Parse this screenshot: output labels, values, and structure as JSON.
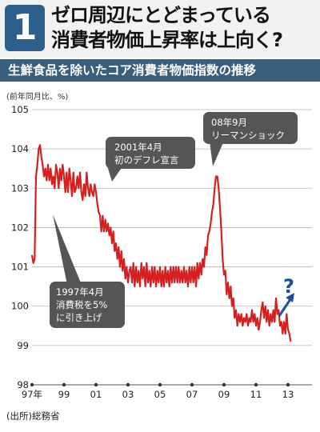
{
  "badge_number": "1",
  "title_lines": [
    "ゼロ周辺にとどまっている",
    "消費者物価上昇率は上向く?"
  ],
  "subtitle": "生鮮食品を除いたコア消費者物価指数の推移",
  "colors": {
    "line": "#d42020",
    "callout": "#555555",
    "arrow": "#1e4f9a",
    "header_blue": "#3a5e7e"
  },
  "chart_data": {
    "type": "line",
    "ylabel": "(前年同月比、%)",
    "ylim": [
      98,
      105
    ],
    "yticks": [
      98,
      99,
      100,
      101,
      102,
      103,
      104,
      105
    ],
    "xticks": [
      "97年",
      "99",
      "01",
      "03",
      "05",
      "07",
      "09",
      "11",
      "13"
    ],
    "x_start": 1997.0,
    "x_end": 2014.5,
    "grid": "horizontal",
    "source": "(出所)総務省",
    "series": [
      {
        "points": [
          [
            1997.0,
            101.3
          ],
          [
            1997.083,
            101.1
          ],
          [
            1997.167,
            101.2
          ],
          [
            1997.25,
            103.3
          ],
          [
            1997.333,
            103.6
          ],
          [
            1997.417,
            104.0
          ],
          [
            1997.5,
            104.1
          ],
          [
            1997.583,
            103.8
          ],
          [
            1997.667,
            103.6
          ],
          [
            1997.75,
            103.3
          ],
          [
            1997.833,
            103.5
          ],
          [
            1997.917,
            103.2
          ],
          [
            1998.0,
            103.6
          ],
          [
            1998.083,
            103.2
          ],
          [
            1998.167,
            103.5
          ],
          [
            1998.25,
            103.1
          ],
          [
            1998.333,
            103.3
          ],
          [
            1998.417,
            103.0
          ],
          [
            1998.5,
            103.6
          ],
          [
            1998.583,
            103.4
          ],
          [
            1998.667,
            103.0
          ],
          [
            1998.75,
            103.5
          ],
          [
            1998.833,
            103.2
          ],
          [
            1998.917,
            103.6
          ],
          [
            1999.0,
            103.3
          ],
          [
            1999.083,
            102.9
          ],
          [
            1999.167,
            103.4
          ],
          [
            1999.25,
            102.9
          ],
          [
            1999.333,
            103.5
          ],
          [
            1999.417,
            103.2
          ],
          [
            1999.5,
            102.8
          ],
          [
            1999.583,
            103.4
          ],
          [
            1999.667,
            102.9
          ],
          [
            1999.75,
            103.0
          ],
          [
            1999.833,
            103.3
          ],
          [
            1999.917,
            103.0
          ],
          [
            2000.0,
            103.4
          ],
          [
            2000.083,
            102.9
          ],
          [
            2000.167,
            102.7
          ],
          [
            2000.25,
            103.1
          ],
          [
            2000.333,
            102.8
          ],
          [
            2000.417,
            103.4
          ],
          [
            2000.5,
            103.0
          ],
          [
            2000.583,
            102.8
          ],
          [
            2000.667,
            103.1
          ],
          [
            2000.75,
            102.9
          ],
          [
            2000.833,
            102.8
          ],
          [
            2000.917,
            103.1
          ],
          [
            2001.0,
            102.9
          ],
          [
            2001.083,
            102.6
          ],
          [
            2001.167,
            102.4
          ],
          [
            2001.25,
            102.3
          ],
          [
            2001.333,
            101.9
          ],
          [
            2001.417,
            102.3
          ],
          [
            2001.5,
            101.9
          ],
          [
            2001.583,
            102.2
          ],
          [
            2001.667,
            101.9
          ],
          [
            2001.75,
            102.1
          ],
          [
            2001.833,
            101.8
          ],
          [
            2001.917,
            102.0
          ],
          [
            2002.0,
            101.6
          ],
          [
            2002.083,
            101.9
          ],
          [
            2002.167,
            101.4
          ],
          [
            2002.25,
            101.6
          ],
          [
            2002.333,
            101.2
          ],
          [
            2002.417,
            101.5
          ],
          [
            2002.5,
            101.0
          ],
          [
            2002.583,
            101.4
          ],
          [
            2002.667,
            100.9
          ],
          [
            2002.75,
            101.2
          ],
          [
            2002.833,
            100.7
          ],
          [
            2002.917,
            101.0
          ],
          [
            2003.0,
            100.6
          ],
          [
            2003.083,
            100.9
          ],
          [
            2003.167,
            101.0
          ],
          [
            2003.25,
            100.6
          ],
          [
            2003.333,
            101.1
          ],
          [
            2003.417,
            100.5
          ],
          [
            2003.5,
            101.0
          ],
          [
            2003.583,
            100.6
          ],
          [
            2003.667,
            100.9
          ],
          [
            2003.75,
            100.5
          ],
          [
            2003.833,
            101.1
          ],
          [
            2003.917,
            100.7
          ],
          [
            2004.0,
            101.0
          ],
          [
            2004.083,
            100.5
          ],
          [
            2004.167,
            101.1
          ],
          [
            2004.25,
            100.6
          ],
          [
            2004.333,
            100.9
          ],
          [
            2004.417,
            100.5
          ],
          [
            2004.5,
            101.0
          ],
          [
            2004.583,
            100.6
          ],
          [
            2004.667,
            101.0
          ],
          [
            2004.75,
            100.5
          ],
          [
            2004.833,
            100.9
          ],
          [
            2004.917,
            100.6
          ],
          [
            2005.0,
            101.0
          ],
          [
            2005.083,
            100.5
          ],
          [
            2005.167,
            100.9
          ],
          [
            2005.25,
            100.5
          ],
          [
            2005.333,
            101.0
          ],
          [
            2005.417,
            100.6
          ],
          [
            2005.5,
            100.9
          ],
          [
            2005.583,
            100.5
          ],
          [
            2005.667,
            101.0
          ],
          [
            2005.75,
            100.6
          ],
          [
            2005.833,
            101.0
          ],
          [
            2005.917,
            100.6
          ],
          [
            2006.0,
            101.0
          ],
          [
            2006.083,
            100.6
          ],
          [
            2006.167,
            101.0
          ],
          [
            2006.25,
            100.6
          ],
          [
            2006.333,
            100.9
          ],
          [
            2006.417,
            100.6
          ],
          [
            2006.5,
            101.0
          ],
          [
            2006.583,
            100.6
          ],
          [
            2006.667,
            100.9
          ],
          [
            2006.75,
            100.5
          ],
          [
            2006.833,
            101.0
          ],
          [
            2006.917,
            100.6
          ],
          [
            2007.0,
            101.0
          ],
          [
            2007.083,
            100.6
          ],
          [
            2007.167,
            101.0
          ],
          [
            2007.25,
            100.5
          ],
          [
            2007.333,
            101.1
          ],
          [
            2007.417,
            100.7
          ],
          [
            2007.5,
            101.1
          ],
          [
            2007.583,
            100.8
          ],
          [
            2007.667,
            101.2
          ],
          [
            2007.75,
            101.0
          ],
          [
            2007.833,
            101.5
          ],
          [
            2007.917,
            101.3
          ],
          [
            2008.0,
            101.8
          ],
          [
            2008.083,
            101.9
          ],
          [
            2008.167,
            102.1
          ],
          [
            2008.25,
            102.4
          ],
          [
            2008.333,
            102.6
          ],
          [
            2008.417,
            103.0
          ],
          [
            2008.5,
            103.3
          ],
          [
            2008.583,
            103.3
          ],
          [
            2008.667,
            103.0
          ],
          [
            2008.75,
            102.5
          ],
          [
            2008.833,
            101.9
          ],
          [
            2008.917,
            101.2
          ],
          [
            2009.0,
            100.8
          ],
          [
            2009.083,
            100.9
          ],
          [
            2009.167,
            100.3
          ],
          [
            2009.25,
            100.6
          ],
          [
            2009.333,
            100.2
          ],
          [
            2009.417,
            100.5
          ],
          [
            2009.5,
            100.0
          ],
          [
            2009.583,
            100.2
          ],
          [
            2009.667,
            99.7
          ],
          [
            2009.75,
            99.9
          ],
          [
            2009.833,
            99.5
          ],
          [
            2009.917,
            99.8
          ],
          [
            2010.0,
            99.6
          ],
          [
            2010.083,
            99.8
          ],
          [
            2010.167,
            99.5
          ],
          [
            2010.25,
            99.7
          ],
          [
            2010.333,
            99.6
          ],
          [
            2010.417,
            99.8
          ],
          [
            2010.5,
            99.5
          ],
          [
            2010.583,
            99.7
          ],
          [
            2010.667,
            99.6
          ],
          [
            2010.75,
            99.9
          ],
          [
            2010.833,
            99.6
          ],
          [
            2010.917,
            99.8
          ],
          [
            2011.0,
            99.5
          ],
          [
            2011.083,
            99.7
          ],
          [
            2011.167,
            99.4
          ],
          [
            2011.25,
            99.6
          ],
          [
            2011.333,
            99.9
          ],
          [
            2011.417,
            100.1
          ],
          [
            2011.5,
            99.7
          ],
          [
            2011.583,
            100.0
          ],
          [
            2011.667,
            99.6
          ],
          [
            2011.75,
            99.9
          ],
          [
            2011.833,
            99.5
          ],
          [
            2011.917,
            99.8
          ],
          [
            2012.0,
            99.6
          ],
          [
            2012.083,
            99.9
          ],
          [
            2012.167,
            99.6
          ],
          [
            2012.25,
            100.2
          ],
          [
            2012.333,
            99.8
          ],
          [
            2012.417,
            99.9
          ],
          [
            2012.5,
            99.5
          ],
          [
            2012.583,
            99.6
          ],
          [
            2012.667,
            99.3
          ],
          [
            2012.75,
            99.6
          ],
          [
            2012.833,
            99.3
          ],
          [
            2012.917,
            99.8
          ],
          [
            2013.0,
            99.4
          ],
          [
            2013.083,
            99.3
          ],
          [
            2013.167,
            99.1
          ]
        ]
      }
    ],
    "annotations": [
      {
        "text": [
          "2001年4月",
          "初のデフレ宣言"
        ]
      },
      {
        "text": [
          "08年9月",
          "リーマンショック"
        ]
      },
      {
        "text": [
          "1997年4月",
          "消費税を5%",
          "に引き上げ"
        ]
      },
      {
        "text": [
          "?"
        ]
      }
    ]
  }
}
